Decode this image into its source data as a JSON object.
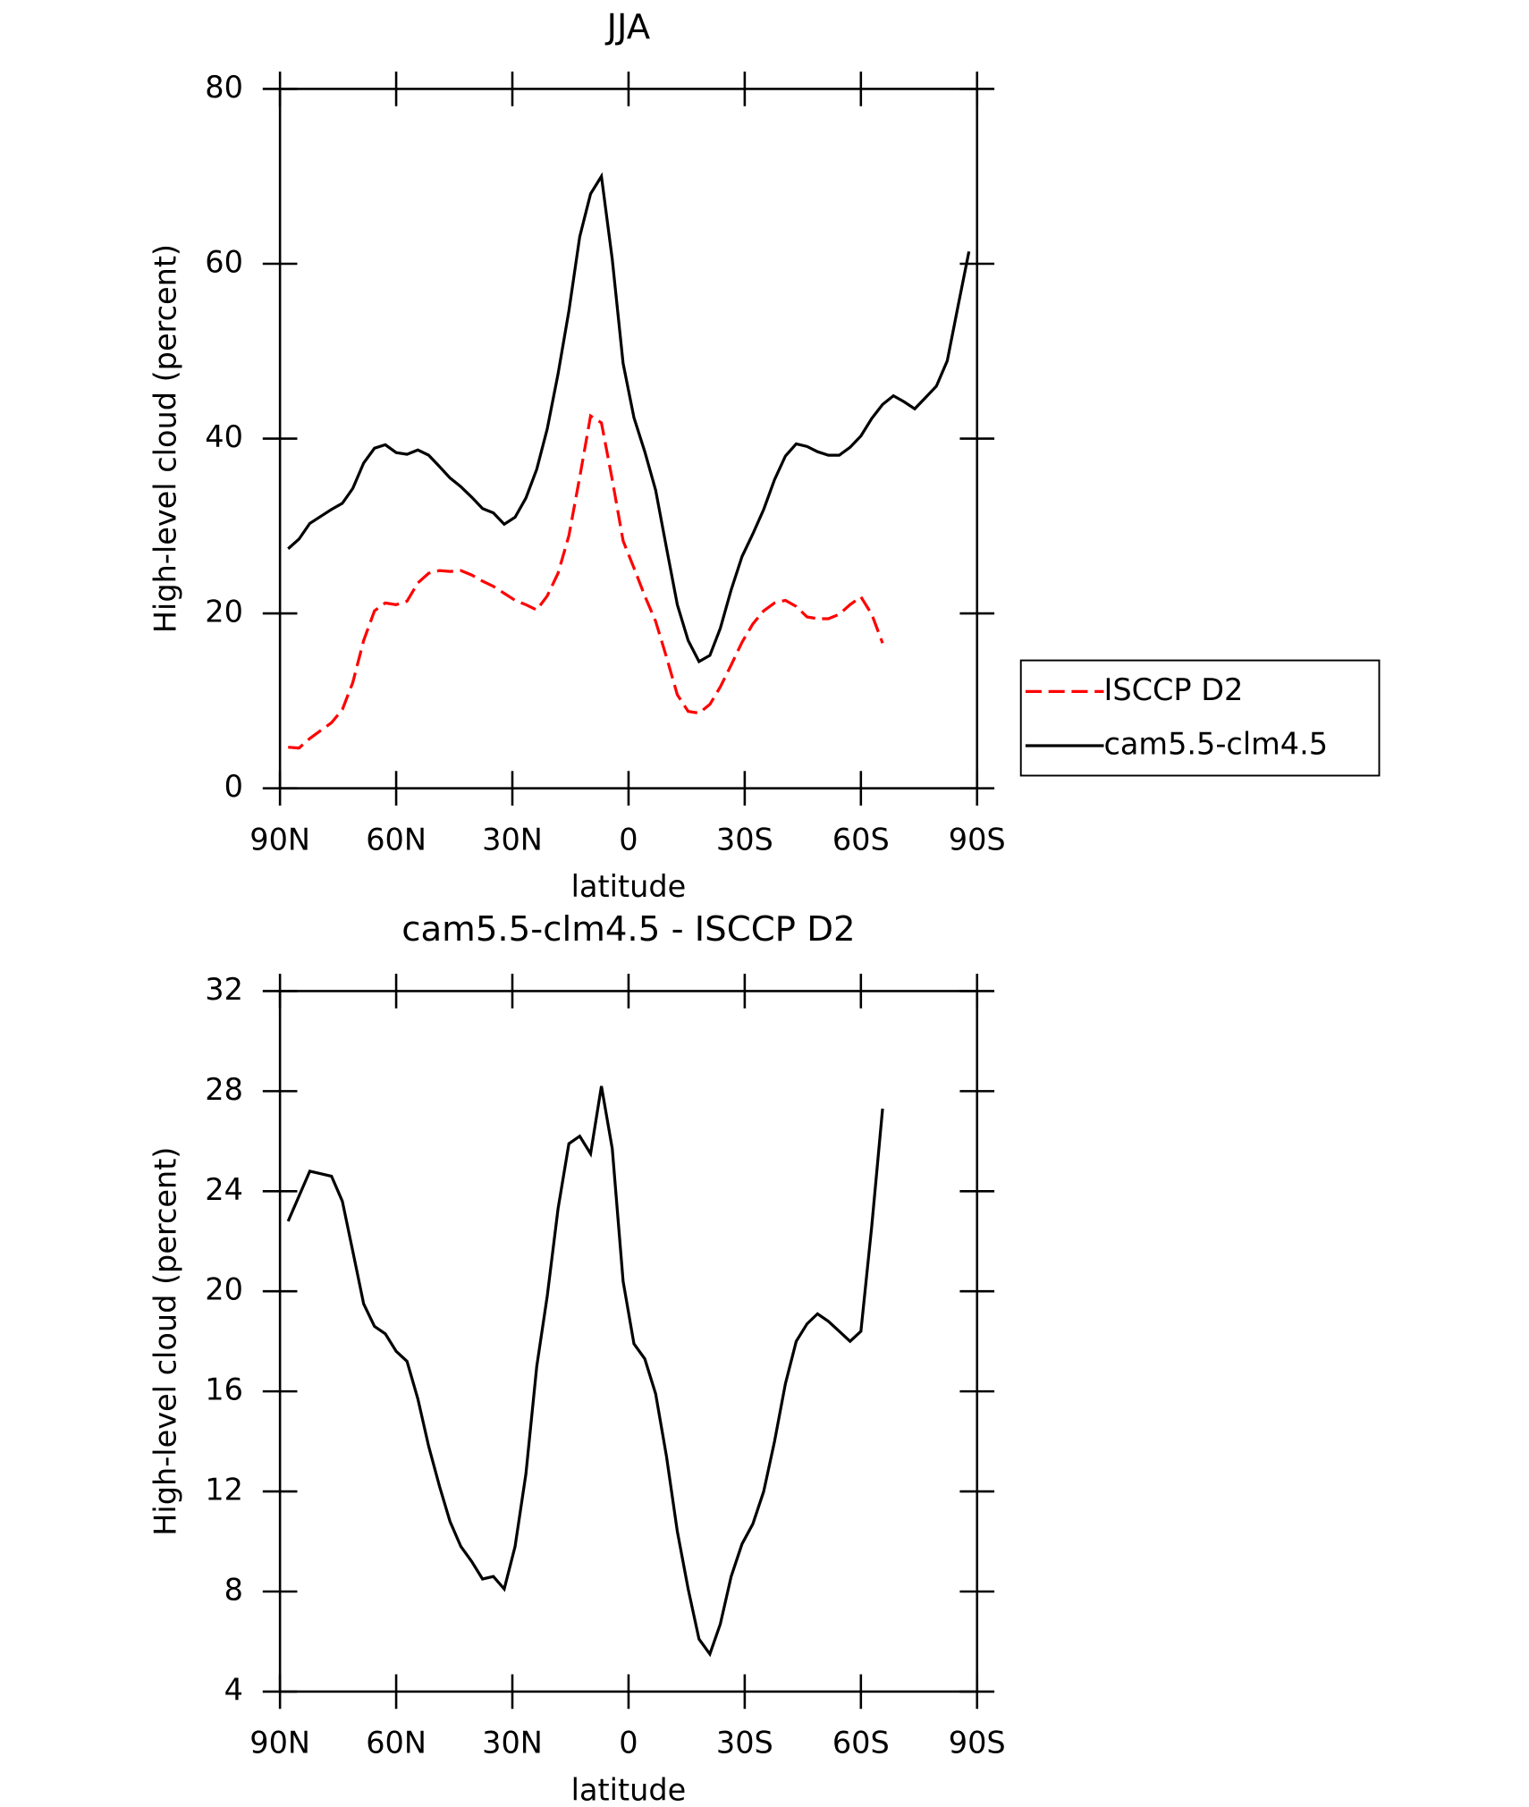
{
  "chart_data": [
    {
      "type": "line",
      "title": "JJA",
      "xlabel": "latitude",
      "ylabel": "High-level cloud (percent)",
      "x": [
        87.9,
        85.1,
        82.3,
        79.5,
        76.7,
        73.9,
        71.2,
        68.4,
        65.6,
        62.8,
        60.0,
        57.2,
        54.4,
        51.6,
        48.8,
        46.1,
        43.3,
        40.5,
        37.7,
        34.9,
        32.1,
        29.3,
        26.5,
        23.7,
        21.0,
        18.2,
        15.4,
        12.6,
        9.8,
        7.0,
        4.2,
        1.4,
        -1.4,
        -4.2,
        -7.0,
        -9.8,
        -12.6,
        -15.4,
        -18.2,
        -21.0,
        -23.7,
        -26.5,
        -29.3,
        -32.1,
        -34.9,
        -37.7,
        -40.5,
        -43.3,
        -46.1,
        -48.8,
        -51.6,
        -54.4,
        -57.2,
        -60.0,
        -62.8,
        -65.6,
        -68.4,
        -71.2,
        -73.9,
        -76.7,
        -79.5,
        -82.3,
        -85.1,
        -87.9
      ],
      "xlim": [
        90,
        -90
      ],
      "xticks": [
        {
          "value": 90,
          "label": "90N"
        },
        {
          "value": 60,
          "label": "60N"
        },
        {
          "value": 30,
          "label": "30N"
        },
        0,
        {
          "value": -30,
          "label": "30S"
        },
        {
          "value": -60,
          "label": "60S"
        },
        {
          "value": -90,
          "label": "90S"
        }
      ],
      "ylim": [
        0,
        80
      ],
      "yticks": [
        0,
        20,
        40,
        60,
        80
      ],
      "legend": "right",
      "series": [
        {
          "name": "ISCCP D2",
          "color": "#ff0000",
          "dash": true,
          "values": [
            4.7,
            4.6,
            5.7,
            6.6,
            7.5,
            9.0,
            12.1,
            16.9,
            20.3,
            21.2,
            21.0,
            21.4,
            23.5,
            24.6,
            24.9,
            24.8,
            24.9,
            24.4,
            23.7,
            23.1,
            22.3,
            21.5,
            21.0,
            20.4,
            22.0,
            24.6,
            28.9,
            35.6,
            42.6,
            41.8,
            35.3,
            28.3,
            25.2,
            22.0,
            19.1,
            15.0,
            10.7,
            8.8,
            8.6,
            9.6,
            11.6,
            14.1,
            16.7,
            18.8,
            20.3,
            21.2,
            21.5,
            20.8,
            19.6,
            19.4,
            19.4,
            19.9,
            21.0,
            21.9,
            19.9,
            16.6,
            null,
            null,
            null,
            null,
            null,
            null,
            null,
            null
          ]
        },
        {
          "name": "cam5.5-clm4.5",
          "color": "#000000",
          "dash": false,
          "values": [
            27.4,
            28.5,
            30.3,
            31.1,
            31.9,
            32.6,
            34.3,
            37.2,
            38.9,
            39.3,
            38.4,
            38.2,
            38.7,
            38.1,
            36.8,
            35.5,
            34.5,
            33.3,
            32.0,
            31.5,
            30.2,
            31.0,
            33.2,
            36.5,
            41.1,
            47.4,
            54.6,
            63.1,
            68.0,
            70.0,
            60.5,
            48.6,
            42.4,
            38.5,
            34.1,
            27.5,
            21.0,
            16.9,
            14.5,
            15.2,
            18.3,
            22.7,
            26.5,
            29.1,
            31.9,
            35.3,
            38.0,
            39.4,
            39.1,
            38.5,
            38.1,
            38.1,
            39.0,
            40.3,
            42.3,
            43.9,
            44.9,
            44.2,
            43.4,
            44.7,
            46.0,
            48.9,
            55.2,
            61.4
          ]
        }
      ]
    },
    {
      "type": "line",
      "title": "cam5.5-clm4.5 - ISCCP D2",
      "xlabel": "latitude",
      "ylabel": "High-level cloud (percent)",
      "x": [
        87.9,
        85.1,
        82.3,
        79.5,
        76.7,
        73.9,
        71.2,
        68.4,
        65.6,
        62.8,
        60.0,
        57.2,
        54.4,
        51.6,
        48.8,
        46.1,
        43.3,
        40.5,
        37.7,
        34.9,
        32.1,
        29.3,
        26.5,
        23.7,
        21.0,
        18.2,
        15.4,
        12.6,
        9.8,
        7.0,
        4.2,
        1.4,
        -1.4,
        -4.2,
        -7.0,
        -9.8,
        -12.6,
        -15.4,
        -18.2,
        -21.0,
        -23.7,
        -26.5,
        -29.3,
        -32.1,
        -34.9,
        -37.7,
        -40.5,
        -43.3,
        -46.1,
        -48.8,
        -51.6,
        -54.4,
        -57.2,
        -60.0,
        -62.8,
        -65.6,
        -68.4,
        -71.2,
        -73.9,
        -76.7,
        -79.5,
        -82.3,
        -85.1,
        -87.9
      ],
      "xlim": [
        90,
        -90
      ],
      "xticks": [
        {
          "value": 90,
          "label": "90N"
        },
        {
          "value": 60,
          "label": "60N"
        },
        {
          "value": 30,
          "label": "30N"
        },
        0,
        {
          "value": -30,
          "label": "30S"
        },
        {
          "value": -60,
          "label": "60S"
        },
        {
          "value": -90,
          "label": "90S"
        }
      ],
      "ylim": [
        4,
        32
      ],
      "yticks": [
        4,
        8,
        12,
        16,
        20,
        24,
        28,
        32
      ],
      "series": [
        {
          "color": "#000000",
          "dash": false,
          "values": [
            22.8,
            23.8,
            24.8,
            24.7,
            24.6,
            23.6,
            21.6,
            19.5,
            18.6,
            18.3,
            17.6,
            17.2,
            15.7,
            13.8,
            12.2,
            10.8,
            9.8,
            9.2,
            8.5,
            8.6,
            8.1,
            9.8,
            12.7,
            17.0,
            19.8,
            23.3,
            25.9,
            26.2,
            25.5,
            28.2,
            25.7,
            20.4,
            17.9,
            17.3,
            15.9,
            13.4,
            10.4,
            8.1,
            6.1,
            5.5,
            6.7,
            8.6,
            9.9,
            10.7,
            12.0,
            14.0,
            16.3,
            18.0,
            18.7,
            19.1,
            18.8,
            18.4,
            18.0,
            18.4,
            22.6,
            27.3,
            null,
            null,
            null,
            null,
            null,
            null,
            null,
            null
          ]
        }
      ]
    }
  ]
}
